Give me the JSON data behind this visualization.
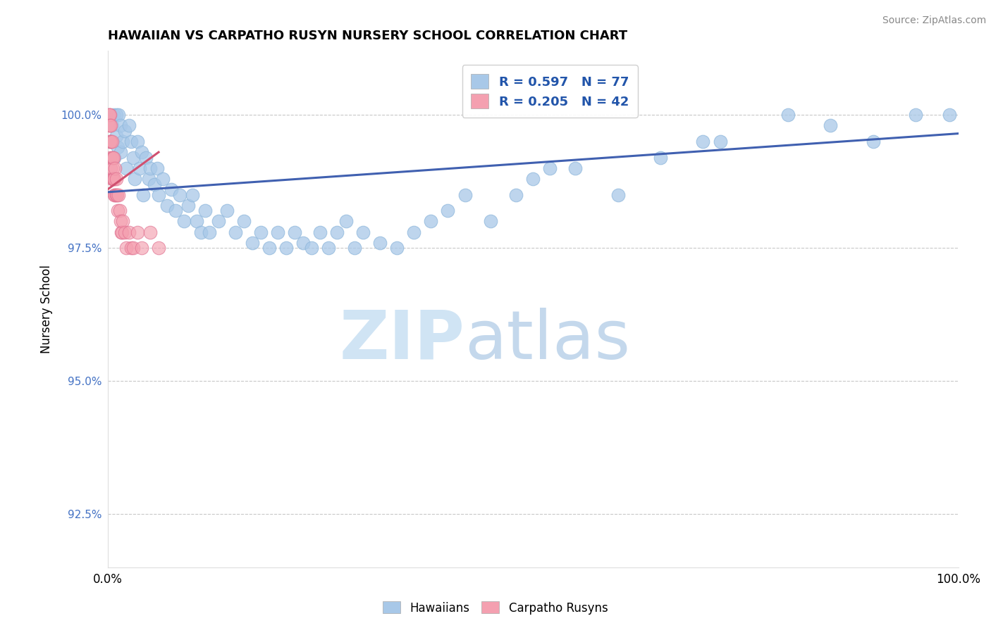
{
  "title": "HAWAIIAN VS CARPATHO RUSYN NURSERY SCHOOL CORRELATION CHART",
  "source": "Source: ZipAtlas.com",
  "ylabel": "Nursery School",
  "legend_blue_R": "R = 0.597",
  "legend_blue_N": "N = 77",
  "legend_pink_R": "R = 0.205",
  "legend_pink_N": "N = 42",
  "legend_label_blue": "Hawaiians",
  "legend_label_pink": "Carpatho Rusyns",
  "blue_color": "#A8C8E8",
  "blue_edge_color": "#90B8DC",
  "pink_color": "#F4A0B0",
  "pink_edge_color": "#E07090",
  "blue_line_color": "#4060B0",
  "pink_line_color": "#D05070",
  "grid_color": "#C8C8C8",
  "title_fontsize": 13,
  "blue_points_x": [
    0.003,
    0.005,
    0.007,
    0.008,
    0.01,
    0.01,
    0.012,
    0.013,
    0.015,
    0.015,
    0.018,
    0.02,
    0.022,
    0.025,
    0.028,
    0.03,
    0.032,
    0.035,
    0.038,
    0.04,
    0.042,
    0.045,
    0.048,
    0.05,
    0.055,
    0.058,
    0.06,
    0.065,
    0.07,
    0.075,
    0.08,
    0.085,
    0.09,
    0.095,
    0.1,
    0.105,
    0.11,
    0.115,
    0.12,
    0.13,
    0.14,
    0.15,
    0.16,
    0.17,
    0.18,
    0.19,
    0.2,
    0.21,
    0.22,
    0.23,
    0.24,
    0.25,
    0.26,
    0.27,
    0.28,
    0.29,
    0.3,
    0.32,
    0.34,
    0.36,
    0.38,
    0.4,
    0.42,
    0.45,
    0.48,
    0.5,
    0.52,
    0.55,
    0.6,
    0.65,
    0.7,
    0.72,
    0.8,
    0.85,
    0.9,
    0.95,
    0.99
  ],
  "blue_points_y": [
    99.5,
    99.8,
    100.0,
    99.2,
    100.0,
    99.6,
    99.4,
    100.0,
    99.8,
    99.3,
    99.5,
    99.7,
    99.0,
    99.8,
    99.5,
    99.2,
    98.8,
    99.5,
    99.0,
    99.3,
    98.5,
    99.2,
    98.8,
    99.0,
    98.7,
    99.0,
    98.5,
    98.8,
    98.3,
    98.6,
    98.2,
    98.5,
    98.0,
    98.3,
    98.5,
    98.0,
    97.8,
    98.2,
    97.8,
    98.0,
    98.2,
    97.8,
    98.0,
    97.6,
    97.8,
    97.5,
    97.8,
    97.5,
    97.8,
    97.6,
    97.5,
    97.8,
    97.5,
    97.8,
    98.0,
    97.5,
    97.8,
    97.6,
    97.5,
    97.8,
    98.0,
    98.2,
    98.5,
    98.0,
    98.5,
    98.8,
    99.0,
    99.0,
    98.5,
    99.2,
    99.5,
    99.5,
    100.0,
    99.8,
    99.5,
    100.0,
    100.0
  ],
  "pink_points_x": [
    0.002,
    0.002,
    0.002,
    0.003,
    0.003,
    0.003,
    0.003,
    0.004,
    0.004,
    0.004,
    0.004,
    0.005,
    0.005,
    0.005,
    0.006,
    0.006,
    0.006,
    0.007,
    0.007,
    0.008,
    0.008,
    0.009,
    0.009,
    0.01,
    0.01,
    0.011,
    0.012,
    0.013,
    0.014,
    0.015,
    0.016,
    0.017,
    0.018,
    0.02,
    0.022,
    0.025,
    0.028,
    0.03,
    0.035,
    0.04,
    0.05,
    0.06
  ],
  "pink_points_y": [
    100.0,
    99.8,
    100.0,
    99.5,
    100.0,
    99.8,
    99.2,
    99.5,
    99.8,
    99.0,
    99.5,
    99.2,
    99.5,
    98.8,
    99.2,
    98.8,
    99.0,
    98.8,
    99.2,
    98.5,
    98.8,
    98.5,
    99.0,
    98.5,
    98.8,
    98.5,
    98.2,
    98.5,
    98.2,
    98.0,
    97.8,
    97.8,
    98.0,
    97.8,
    97.5,
    97.8,
    97.5,
    97.5,
    97.8,
    97.5,
    97.8,
    97.5
  ],
  "blue_trend_x0": 0.0,
  "blue_trend_x1": 1.0,
  "blue_trend_y0": 98.55,
  "blue_trend_y1": 99.65,
  "pink_trend_x0": 0.0,
  "pink_trend_x1": 0.06,
  "pink_trend_y0": 98.6,
  "pink_trend_y1": 99.3,
  "xlim": [
    0.0,
    1.0
  ],
  "ylim": [
    91.5,
    101.2
  ],
  "yticks": [
    92.5,
    95.0,
    97.5,
    100.0
  ],
  "ytick_labels": [
    "92.5%",
    "95.0%",
    "97.5%",
    "100.0%"
  ]
}
